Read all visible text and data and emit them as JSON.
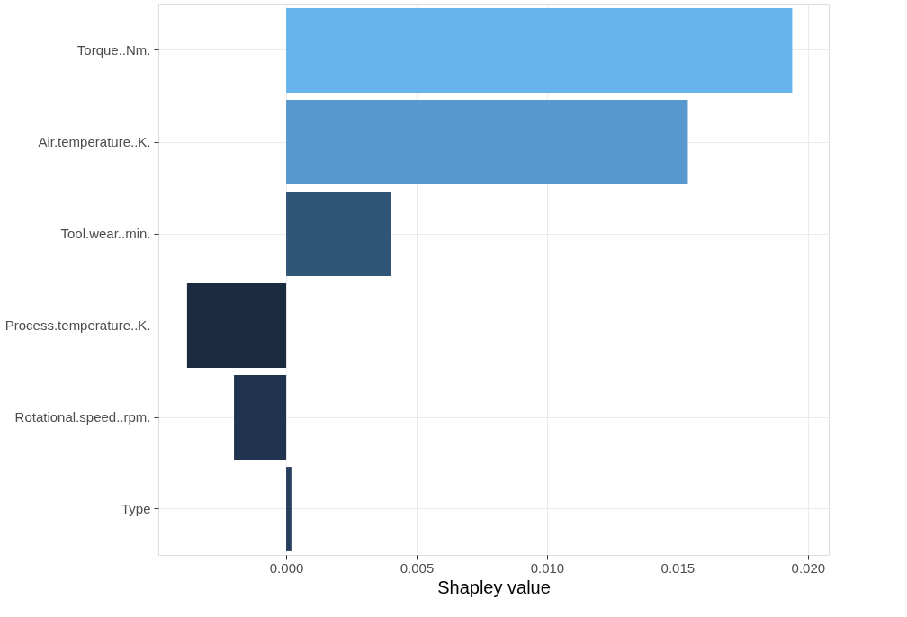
{
  "chart_data": {
    "type": "bar",
    "orientation": "horizontal",
    "xlabel": "Shapley value",
    "categories": [
      "Torque..Nm.",
      "Air.temperature..K.",
      "Tool.wear..min.",
      "Process.temperature..K.",
      "Rotational.speed..rpm.",
      "Type"
    ],
    "values": [
      0.0194,
      0.0154,
      0.004,
      -0.0038,
      -0.002,
      0.0002
    ],
    "colors": [
      "#66b3ee",
      "#5799cf",
      "#2f5677",
      "#1a2b40",
      "#21344f",
      "#263f5e"
    ],
    "xlim": [
      -0.0049,
      0.0208
    ],
    "xticks": [
      {
        "value": 0,
        "label": "0.000"
      },
      {
        "value": 0.005,
        "label": "0.005"
      },
      {
        "value": 0.01,
        "label": "0.010"
      },
      {
        "value": 0.015,
        "label": "0.015"
      },
      {
        "value": 0.02,
        "label": "0.020"
      }
    ],
    "grid": true
  }
}
